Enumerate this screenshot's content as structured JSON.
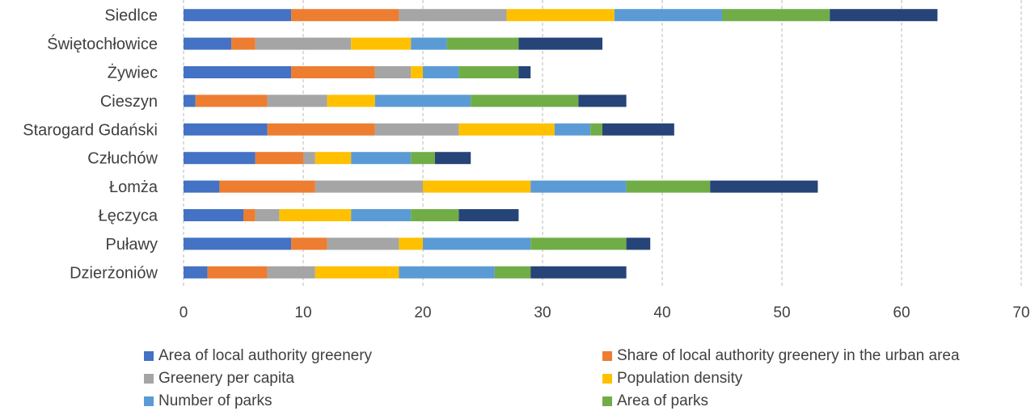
{
  "chart_data": {
    "type": "bar",
    "orientation": "horizontal",
    "stacked": true,
    "categories": [
      "Siedlce",
      "Świętochłowice",
      "Żywiec",
      "Cieszyn",
      "Starogard Gdański",
      "Człuchów",
      "Łomża",
      "Łęczyca",
      "Puławy",
      "Dzierżoniów"
    ],
    "series": [
      {
        "name": "Area of local authority greenery",
        "color": "#4472C4",
        "values": [
          9,
          4,
          9,
          1,
          7,
          6,
          3,
          5,
          9,
          2
        ]
      },
      {
        "name": "Share of local authority greenery in the urban area",
        "color": "#ED7D31",
        "values": [
          9,
          2,
          7,
          6,
          9,
          4,
          8,
          1,
          3,
          5
        ]
      },
      {
        "name": "Greenery per capita",
        "color": "#A5A5A5",
        "values": [
          9,
          8,
          3,
          5,
          7,
          1,
          9,
          2,
          6,
          4
        ]
      },
      {
        "name": "Population density",
        "color": "#FFC000",
        "values": [
          9,
          5,
          1,
          4,
          8,
          3,
          9,
          6,
          2,
          7
        ]
      },
      {
        "name": "Number of parks",
        "color": "#5B9BD5",
        "values": [
          9,
          3,
          3,
          8,
          3,
          5,
          8,
          5,
          9,
          8
        ]
      },
      {
        "name": "Area of parks",
        "color": "#70AD47",
        "values": [
          9,
          6,
          5,
          9,
          1,
          2,
          7,
          4,
          8,
          3
        ]
      },
      {
        "color": "#264478",
        "values": [
          9,
          7,
          1,
          4,
          6,
          3,
          9,
          5,
          2,
          8
        ]
      }
    ],
    "xlim": [
      0,
      70
    ],
    "xticks": [
      "0",
      "10",
      "20",
      "30",
      "40",
      "50",
      "60",
      "70"
    ],
    "grid": "vertical dashed",
    "legend_position": "bottom"
  }
}
